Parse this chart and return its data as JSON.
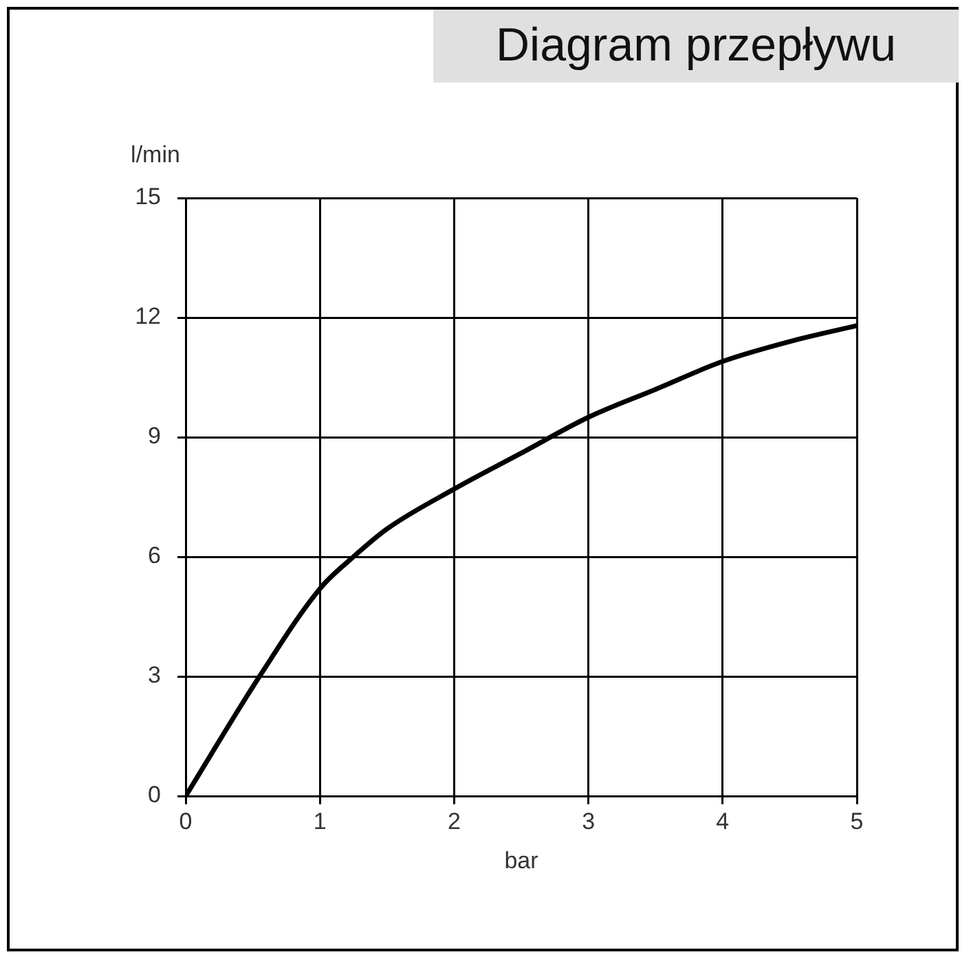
{
  "chart_data": {
    "type": "line",
    "title": "Diagram przepływu",
    "xlabel": "bar",
    "ylabel": "l/min",
    "series": [
      {
        "color": "#000000",
        "x": [
          0,
          0.55,
          1,
          1.25,
          1.5,
          2,
          2.5,
          3,
          3.5,
          4,
          4.5,
          5
        ],
        "values": [
          0,
          3,
          5.2,
          6,
          6.7,
          7.7,
          8.6,
          9.5,
          10.2,
          10.9,
          11.4,
          11.8
        ]
      }
    ],
    "xlim": [
      0,
      5
    ],
    "xticks": [
      0,
      1,
      2,
      3,
      4,
      5
    ],
    "ylim": [
      0,
      15
    ],
    "yticks": [
      0,
      3,
      6,
      9,
      12,
      15
    ],
    "grid": true,
    "legend": false,
    "marker": "none",
    "line_style": "solid"
  }
}
